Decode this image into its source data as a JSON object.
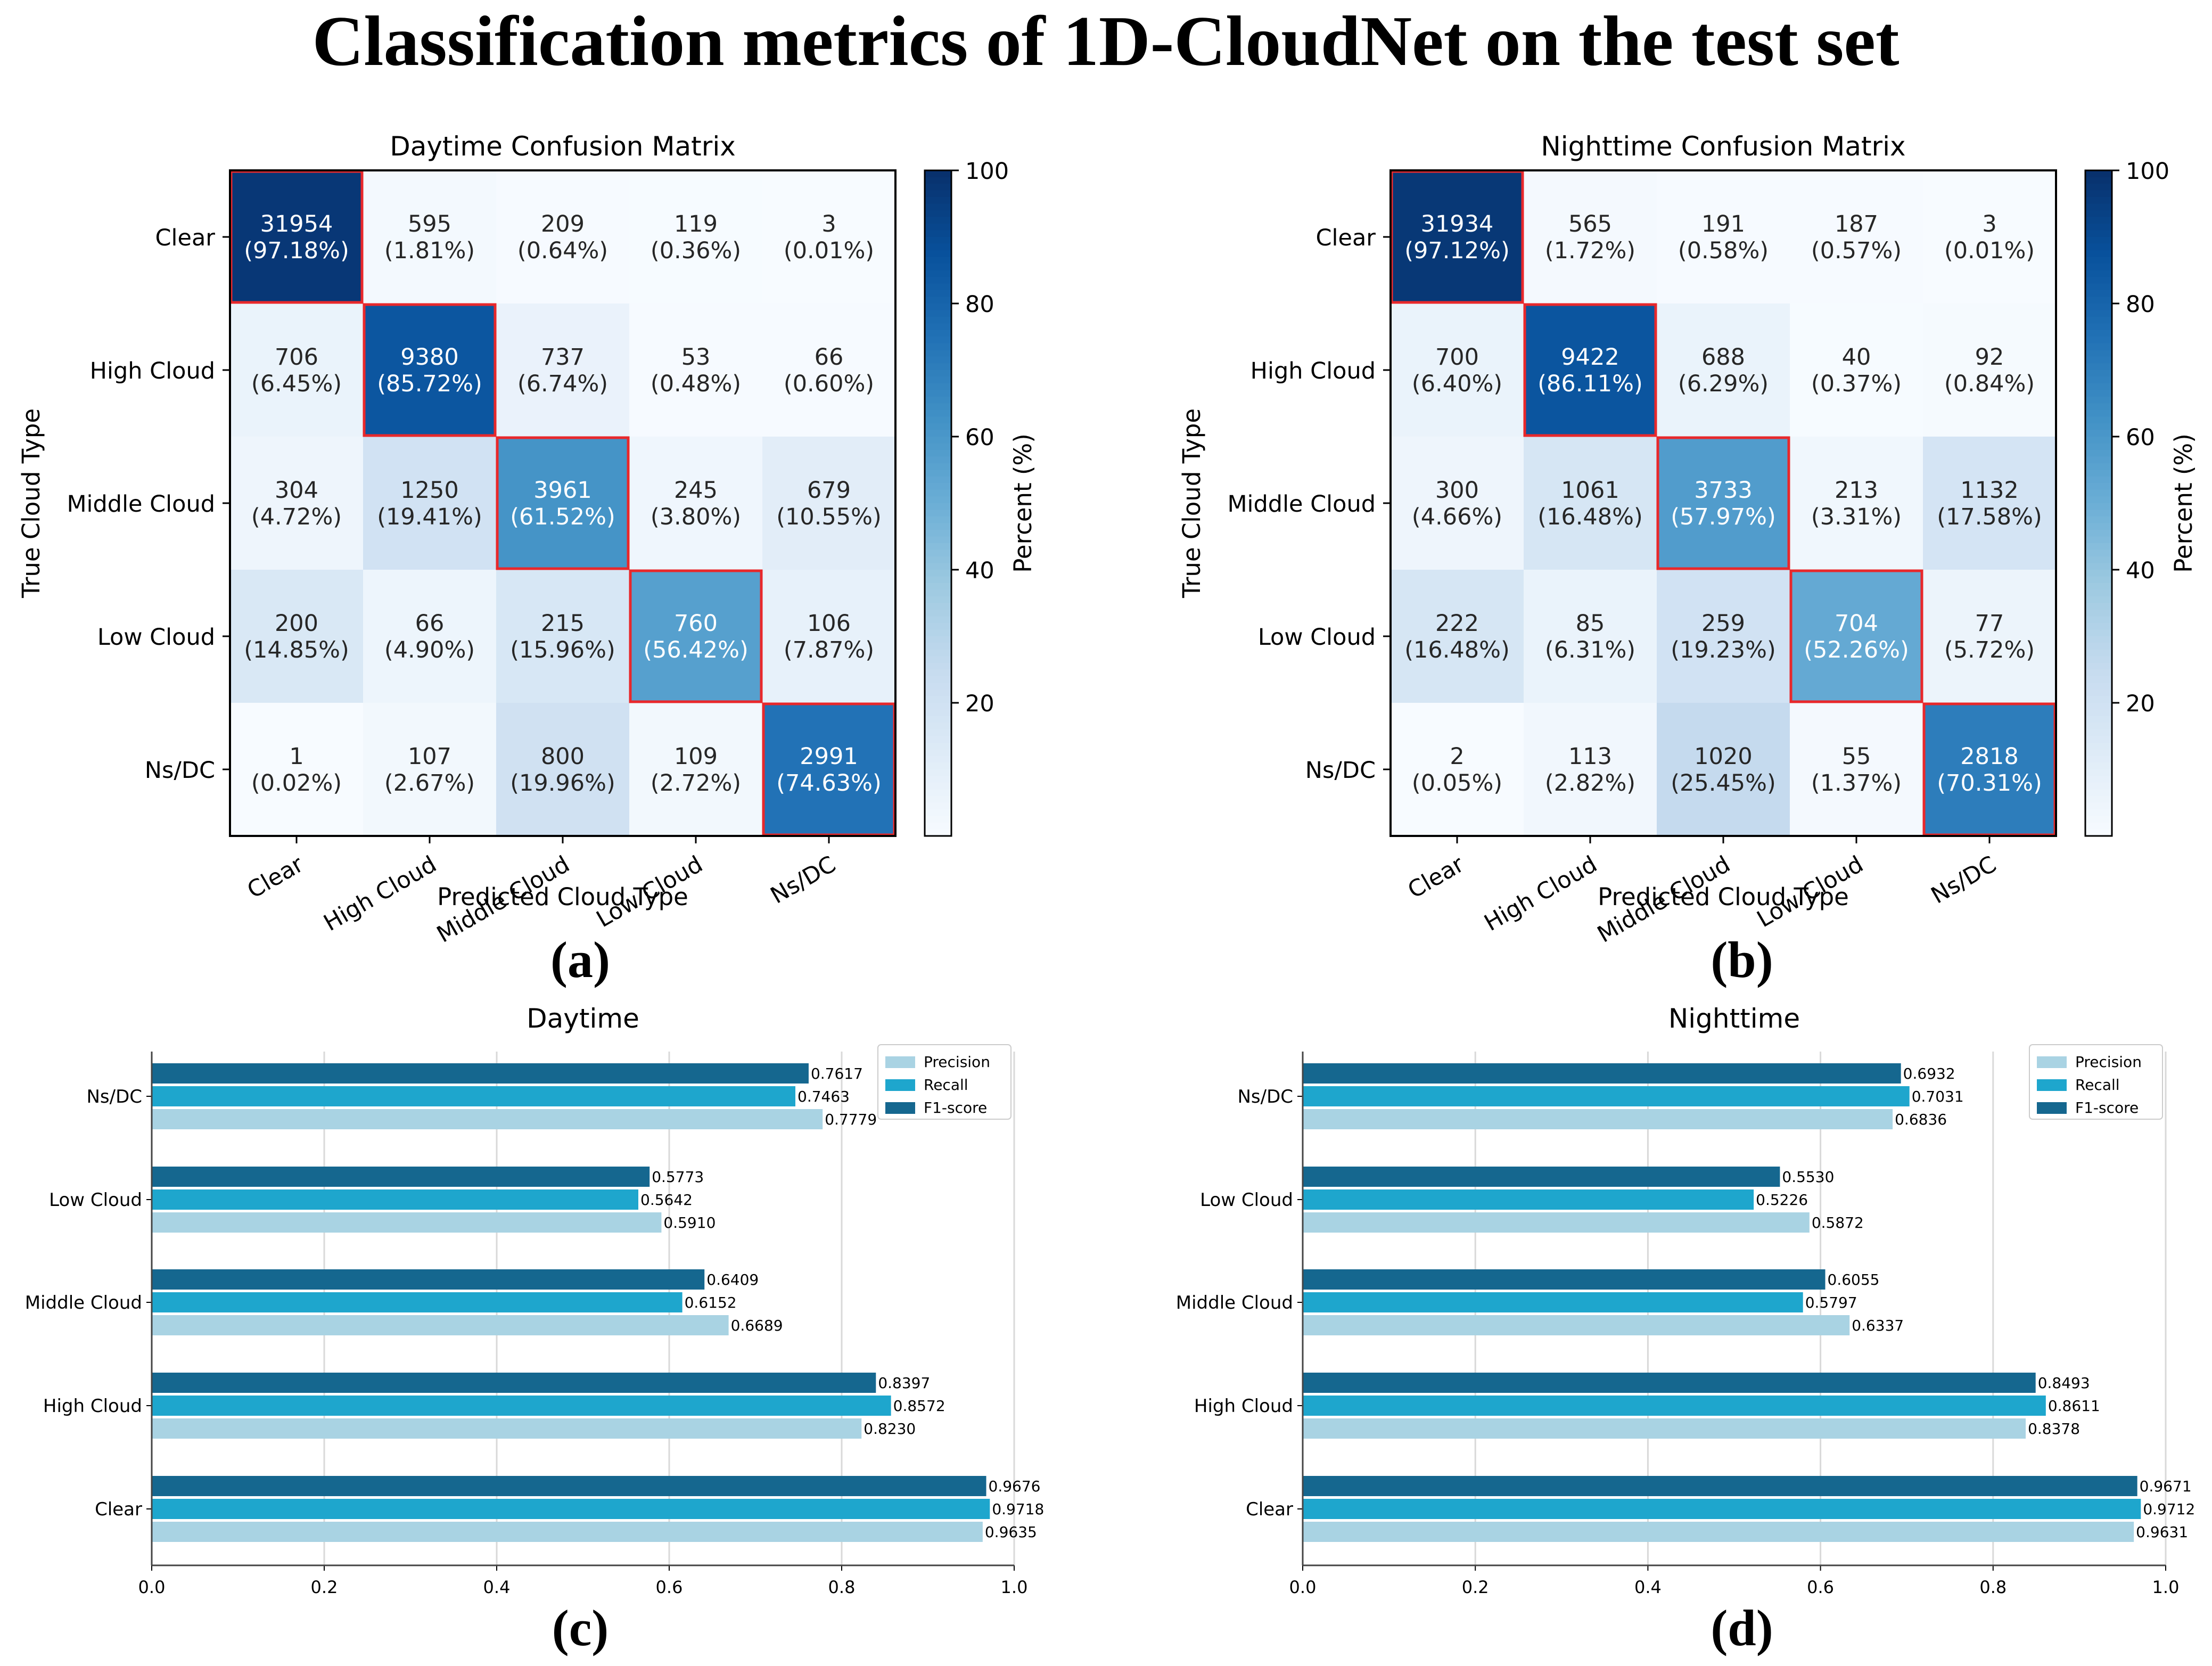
{
  "figure_title": "Classification metrics of 1D-CloudNet on the test set",
  "panel_labels": [
    "(a)",
    "(b)",
    "(c)",
    "(d)"
  ],
  "chart_data": [
    {
      "type": "heatmap",
      "title": "Daytime Confusion Matrix",
      "xlabel": "Predicted Cloud Type",
      "ylabel": "True Cloud Type",
      "colorbar_label": "Percent (%)",
      "colorbar_ticks": [
        "20",
        "40",
        "60",
        "80",
        "100"
      ],
      "colorbar_range": [
        0,
        100
      ],
      "row_labels": [
        "Clear",
        "High Cloud",
        "Middle Cloud",
        "Low Cloud",
        "Ns/DC"
      ],
      "col_labels": [
        "Clear",
        "High Cloud",
        "Middle Cloud",
        "Low Cloud",
        "Ns/DC"
      ],
      "counts": [
        [
          "31954",
          "595",
          "209",
          "119",
          "3"
        ],
        [
          "706",
          "9380",
          "737",
          "53",
          "66"
        ],
        [
          "304",
          "1250",
          "3961",
          "245",
          "679"
        ],
        [
          "200",
          "66",
          "215",
          "760",
          "106"
        ],
        [
          "1",
          "107",
          "800",
          "109",
          "2991"
        ]
      ],
      "percents": [
        [
          "(97.18%)",
          "(1.81%)",
          "(0.64%)",
          "(0.36%)",
          "(0.01%)"
        ],
        [
          "(6.45%)",
          "(85.72%)",
          "(6.74%)",
          "(0.48%)",
          "(0.60%)"
        ],
        [
          "(4.72%)",
          "(19.41%)",
          "(61.52%)",
          "(3.80%)",
          "(10.55%)"
        ],
        [
          "(14.85%)",
          "(4.90%)",
          "(15.96%)",
          "(56.42%)",
          "(7.87%)"
        ],
        [
          "(0.02%)",
          "(2.67%)",
          "(19.96%)",
          "(2.72%)",
          "(74.63%)"
        ]
      ],
      "percent_values": [
        [
          97.18,
          1.81,
          0.64,
          0.36,
          0.01
        ],
        [
          6.45,
          85.72,
          6.74,
          0.48,
          0.6
        ],
        [
          4.72,
          19.41,
          61.52,
          3.8,
          10.55
        ],
        [
          14.85,
          4.9,
          15.96,
          56.42,
          7.87
        ],
        [
          0.02,
          2.67,
          19.96,
          2.72,
          74.63
        ]
      ]
    },
    {
      "type": "heatmap",
      "title": "Nighttime Confusion Matrix",
      "xlabel": "Predicted Cloud Type",
      "ylabel": "True Cloud Type",
      "colorbar_label": "Percent (%)",
      "colorbar_ticks": [
        "20",
        "40",
        "60",
        "80",
        "100"
      ],
      "colorbar_range": [
        0,
        100
      ],
      "row_labels": [
        "Clear",
        "High Cloud",
        "Middle Cloud",
        "Low Cloud",
        "Ns/DC"
      ],
      "col_labels": [
        "Clear",
        "High Cloud",
        "Middle Cloud",
        "Low Cloud",
        "Ns/DC"
      ],
      "counts": [
        [
          "31934",
          "565",
          "191",
          "187",
          "3"
        ],
        [
          "700",
          "9422",
          "688",
          "40",
          "92"
        ],
        [
          "300",
          "1061",
          "3733",
          "213",
          "1132"
        ],
        [
          "222",
          "85",
          "259",
          "704",
          "77"
        ],
        [
          "2",
          "113",
          "1020",
          "55",
          "2818"
        ]
      ],
      "percents": [
        [
          "(97.12%)",
          "(1.72%)",
          "(0.58%)",
          "(0.57%)",
          "(0.01%)"
        ],
        [
          "(6.40%)",
          "(86.11%)",
          "(6.29%)",
          "(0.37%)",
          "(0.84%)"
        ],
        [
          "(4.66%)",
          "(16.48%)",
          "(57.97%)",
          "(3.31%)",
          "(17.58%)"
        ],
        [
          "(16.48%)",
          "(6.31%)",
          "(19.23%)",
          "(52.26%)",
          "(5.72%)"
        ],
        [
          "(0.05%)",
          "(2.82%)",
          "(25.45%)",
          "(1.37%)",
          "(70.31%)"
        ]
      ],
      "percent_values": [
        [
          97.12,
          1.72,
          0.58,
          0.57,
          0.01
        ],
        [
          6.4,
          86.11,
          6.29,
          0.37,
          0.84
        ],
        [
          4.66,
          16.48,
          57.97,
          3.31,
          17.58
        ],
        [
          16.48,
          6.31,
          19.23,
          52.26,
          5.72
        ],
        [
          0.05,
          2.82,
          25.45,
          1.37,
          70.31
        ]
      ]
    },
    {
      "type": "bar",
      "orientation": "horizontal",
      "title": "Daytime",
      "categories": [
        "Clear",
        "High Cloud",
        "Middle Cloud",
        "Low Cloud",
        "Ns/DC"
      ],
      "xlim": [
        0,
        1
      ],
      "xticks": [
        "0.0",
        "0.2",
        "0.4",
        "0.6",
        "0.8",
        "1.0"
      ],
      "legend_position": "top-right",
      "series": [
        {
          "name": "Precision",
          "color": "#a9d3e3",
          "values": [
            0.9635,
            0.823,
            0.6689,
            0.591,
            0.7779
          ],
          "labels": [
            "0.9635",
            "0.8230",
            "0.6689",
            "0.5910",
            "0.7779"
          ]
        },
        {
          "name": "Recall",
          "color": "#1ea6cd",
          "values": [
            0.9718,
            0.8572,
            0.6152,
            0.5642,
            0.7463
          ],
          "labels": [
            "0.9718",
            "0.8572",
            "0.6152",
            "0.5642",
            "0.7463"
          ]
        },
        {
          "name": "F1-score",
          "color": "#15678f",
          "values": [
            0.9676,
            0.8397,
            0.6409,
            0.5773,
            0.7617
          ],
          "labels": [
            "0.9676",
            "0.8397",
            "0.6409",
            "0.5773",
            "0.7617"
          ]
        }
      ]
    },
    {
      "type": "bar",
      "orientation": "horizontal",
      "title": "Nighttime",
      "categories": [
        "Clear",
        "High Cloud",
        "Middle Cloud",
        "Low Cloud",
        "Ns/DC"
      ],
      "xlim": [
        0,
        1
      ],
      "xticks": [
        "0.0",
        "0.2",
        "0.4",
        "0.6",
        "0.8",
        "1.0"
      ],
      "legend_position": "top-right",
      "series": [
        {
          "name": "Precision",
          "color": "#a9d3e3",
          "values": [
            0.9631,
            0.8378,
            0.6337,
            0.5872,
            0.6836
          ],
          "labels": [
            "0.9631",
            "0.8378",
            "0.6337",
            "0.5872",
            "0.6836"
          ]
        },
        {
          "name": "Recall",
          "color": "#1ea6cd",
          "values": [
            0.9712,
            0.8611,
            0.5797,
            0.5226,
            0.7031
          ],
          "labels": [
            "0.9712",
            "0.8611",
            "0.5797",
            "0.5226",
            "0.7031"
          ]
        },
        {
          "name": "F1-score",
          "color": "#15678f",
          "values": [
            0.9671,
            0.8493,
            0.6055,
            0.553,
            0.6932
          ],
          "labels": [
            "0.9671",
            "0.8493",
            "0.6055",
            "0.5530",
            "0.6932"
          ]
        }
      ]
    }
  ]
}
